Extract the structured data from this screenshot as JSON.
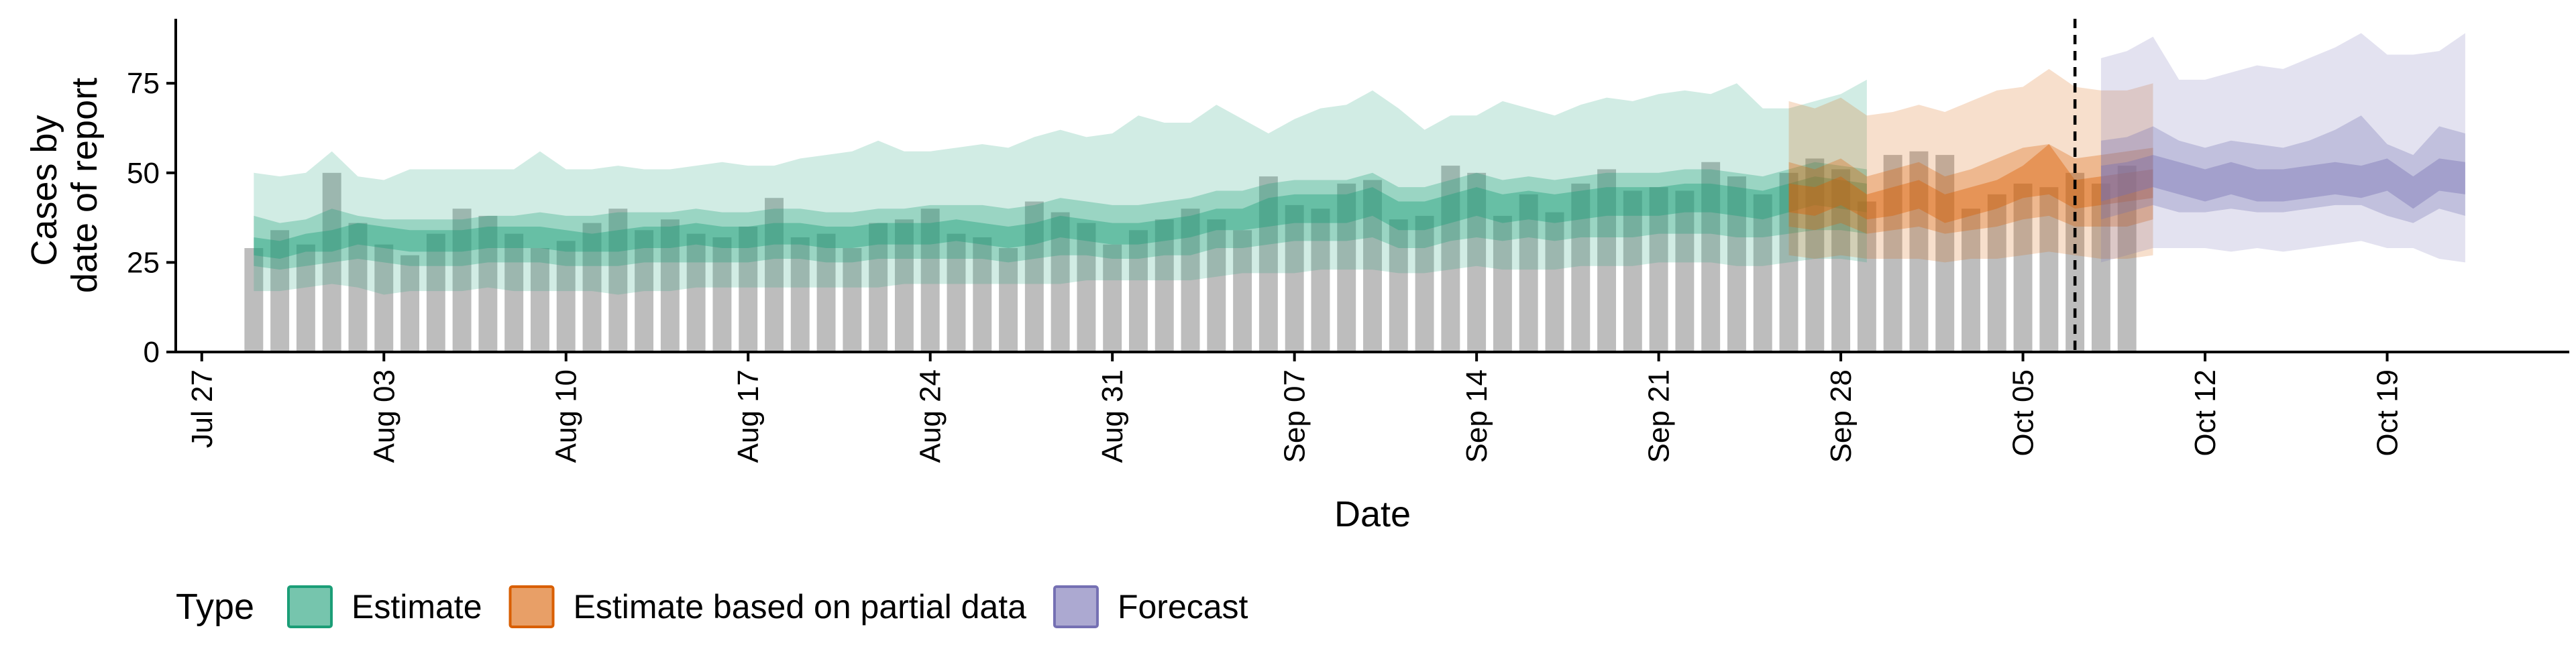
{
  "chart_data": {
    "type": "bar",
    "xlabel": "Date",
    "ylabel": [
      "Cases by",
      "date of report"
    ],
    "ylim": [
      0,
      93
    ],
    "yticks": [
      0,
      25,
      50,
      75
    ],
    "xticks": [
      {
        "date": "2020-07-27",
        "label": "Jul 27"
      },
      {
        "date": "2020-08-03",
        "label": "Aug 03"
      },
      {
        "date": "2020-08-10",
        "label": "Aug 10"
      },
      {
        "date": "2020-08-17",
        "label": "Aug 17"
      },
      {
        "date": "2020-08-24",
        "label": "Aug 24"
      },
      {
        "date": "2020-08-31",
        "label": "Aug 31"
      },
      {
        "date": "2020-09-07",
        "label": "Sep 07"
      },
      {
        "date": "2020-09-14",
        "label": "Sep 14"
      },
      {
        "date": "2020-09-21",
        "label": "Sep 21"
      },
      {
        "date": "2020-09-28",
        "label": "Sep 28"
      },
      {
        "date": "2020-10-05",
        "label": "Oct 05"
      },
      {
        "date": "2020-10-12",
        "label": "Oct 12"
      },
      {
        "date": "2020-10-19",
        "label": "Oct 19"
      }
    ],
    "xlim": [
      "2020-07-26",
      "2020-10-26"
    ],
    "reference_line_date": "2020-10-07",
    "bar_color": "#bdbdbd",
    "reported_cases": {
      "start_date": "2020-07-29",
      "values": [
        29,
        34,
        30,
        50,
        36,
        30,
        27,
        33,
        40,
        38,
        33,
        29,
        31,
        36,
        40,
        34,
        37,
        33,
        32,
        35,
        43,
        32,
        33,
        29,
        36,
        37,
        40,
        33,
        32,
        29,
        42,
        39,
        36,
        30,
        34,
        37,
        40,
        37,
        34,
        49,
        41,
        40,
        47,
        48,
        37,
        38,
        52,
        50,
        38,
        44,
        39,
        47,
        51,
        45,
        46,
        45,
        53,
        49,
        44,
        50,
        54,
        51,
        42,
        55,
        56,
        55,
        40,
        44,
        47,
        46,
        50,
        47,
        52
      ]
    },
    "series": [
      {
        "name": "Estimate",
        "color": "#1b9e77",
        "start_date": "2020-07-29",
        "median": [
          29,
          28,
          30,
          31,
          33,
          32,
          31,
          31,
          31,
          32,
          32,
          32,
          31,
          30,
          31,
          32,
          32,
          33,
          32,
          32,
          33,
          33,
          32,
          32,
          33,
          33,
          33,
          34,
          33,
          32,
          33,
          35,
          34,
          33,
          33,
          34,
          35,
          37,
          37,
          39,
          40,
          40,
          40,
          42,
          38,
          38,
          40,
          42,
          40,
          41,
          40,
          41,
          42,
          42,
          42,
          43,
          43,
          42,
          41,
          43,
          45,
          44,
          43
        ],
        "lower_90": [
          17,
          17,
          18,
          19,
          18,
          16,
          17,
          17,
          17,
          18,
          17,
          17,
          17,
          17,
          16,
          17,
          17,
          18,
          18,
          18,
          18,
          18,
          18,
          18,
          18,
          19,
          19,
          19,
          19,
          19,
          19,
          19,
          20,
          20,
          20,
          20,
          20,
          21,
          22,
          22,
          22,
          23,
          23,
          23,
          22,
          22,
          23,
          24,
          23,
          23,
          23,
          24,
          24,
          24,
          25,
          25,
          25,
          24,
          24,
          25,
          26,
          26,
          25
        ],
        "upper_90": [
          50,
          49,
          50,
          56,
          49,
          48,
          51,
          51,
          51,
          51,
          51,
          56,
          51,
          51,
          52,
          51,
          51,
          52,
          53,
          52,
          52,
          54,
          55,
          56,
          59,
          56,
          56,
          57,
          58,
          57,
          60,
          62,
          60,
          61,
          66,
          64,
          64,
          69,
          65,
          61,
          65,
          68,
          69,
          73,
          68,
          62,
          66,
          66,
          70,
          68,
          66,
          69,
          71,
          70,
          72,
          73,
          72,
          75,
          68,
          68,
          70,
          72,
          76
        ],
        "lower_50": [
          24,
          23,
          24,
          25,
          26,
          25,
          24,
          24,
          24,
          25,
          25,
          25,
          24,
          24,
          24,
          25,
          25,
          25,
          25,
          25,
          26,
          26,
          25,
          25,
          26,
          26,
          26,
          26,
          26,
          25,
          26,
          27,
          27,
          26,
          26,
          27,
          27,
          29,
          29,
          30,
          31,
          31,
          31,
          32,
          29,
          29,
          31,
          32,
          31,
          32,
          31,
          32,
          32,
          32,
          33,
          33,
          33,
          32,
          32,
          33,
          34,
          34,
          33
        ],
        "upper_50": [
          38,
          36,
          37,
          40,
          38,
          37,
          37,
          37,
          37,
          38,
          38,
          39,
          38,
          38,
          39,
          39,
          39,
          40,
          39,
          39,
          40,
          40,
          39,
          39,
          40,
          40,
          41,
          41,
          41,
          40,
          41,
          43,
          42,
          41,
          41,
          42,
          43,
          45,
          45,
          47,
          48,
          48,
          48,
          50,
          46,
          46,
          48,
          50,
          48,
          49,
          48,
          49,
          50,
          50,
          50,
          51,
          51,
          50,
          49,
          51,
          53,
          52,
          51
        ],
        "lower_20": [
          27,
          26,
          28,
          28,
          30,
          29,
          28,
          28,
          28,
          29,
          29,
          29,
          28,
          28,
          28,
          29,
          29,
          30,
          29,
          29,
          30,
          30,
          29,
          29,
          30,
          30,
          30,
          31,
          30,
          29,
          30,
          32,
          31,
          30,
          30,
          31,
          32,
          34,
          34,
          35,
          36,
          36,
          36,
          38,
          34,
          34,
          36,
          38,
          36,
          37,
          36,
          37,
          38,
          38,
          38,
          39,
          39,
          38,
          37,
          39,
          41,
          40,
          39
        ],
        "upper_20": [
          32,
          31,
          33,
          34,
          36,
          35,
          34,
          34,
          34,
          35,
          35,
          35,
          34,
          33,
          34,
          35,
          35,
          36,
          35,
          35,
          36,
          36,
          35,
          35,
          36,
          36,
          36,
          37,
          36,
          35,
          36,
          38,
          37,
          36,
          36,
          37,
          38,
          40,
          40,
          43,
          44,
          44,
          44,
          46,
          42,
          42,
          44,
          46,
          44,
          45,
          44,
          45,
          46,
          46,
          46,
          47,
          47,
          46,
          45,
          47,
          49,
          48,
          47
        ]
      },
      {
        "name": "Estimate based on partial data",
        "color": "#d95f02",
        "start_date": "2020-09-26",
        "median": [
          43,
          42,
          45,
          40,
          42,
          44,
          40,
          42,
          44,
          47,
          48,
          44,
          45,
          46,
          47
        ],
        "lower_90": [
          27,
          26,
          27,
          26,
          26,
          26,
          25,
          26,
          26,
          27,
          28,
          27,
          26,
          26,
          27
        ],
        "upper_90": [
          70,
          68,
          71,
          66,
          67,
          69,
          67,
          70,
          73,
          74,
          79,
          74,
          73,
          73,
          75
        ],
        "lower_50": [
          35,
          34,
          36,
          33,
          34,
          35,
          33,
          34,
          35,
          37,
          38,
          35,
          35,
          35,
          37
        ],
        "upper_50": [
          53,
          51,
          54,
          49,
          51,
          53,
          49,
          51,
          54,
          57,
          58,
          54,
          55,
          56,
          57
        ],
        "lower_20": [
          39,
          38,
          41,
          37,
          38,
          40,
          36,
          38,
          40,
          43,
          44,
          40,
          41,
          42,
          43
        ],
        "upper_20": [
          47,
          46,
          49,
          44,
          46,
          48,
          44,
          46,
          48,
          52,
          58,
          48,
          49,
          50,
          51
        ]
      },
      {
        "name": "Forecast",
        "color": "#7570b3",
        "start_date": "2020-10-08",
        "median": [
          47,
          48,
          50,
          48,
          46,
          48,
          46,
          46,
          47,
          48,
          47,
          49,
          44,
          49,
          48
        ],
        "lower_90": [
          25,
          27,
          29,
          29,
          29,
          28,
          29,
          28,
          29,
          30,
          31,
          29,
          29,
          26,
          25
        ],
        "upper_90": [
          82,
          84,
          88,
          76,
          76,
          78,
          80,
          79,
          82,
          85,
          89,
          83,
          83,
          84,
          89
        ],
        "lower_50": [
          37,
          39,
          41,
          39,
          39,
          40,
          39,
          39,
          40,
          41,
          41,
          38,
          36,
          40,
          38
        ],
        "upper_50": [
          59,
          60,
          63,
          59,
          57,
          59,
          58,
          57,
          59,
          62,
          66,
          58,
          55,
          63,
          61
        ],
        "lower_20": [
          42,
          44,
          46,
          44,
          42,
          44,
          42,
          42,
          43,
          44,
          43,
          45,
          40,
          45,
          44
        ],
        "upper_20": [
          52,
          53,
          55,
          53,
          51,
          53,
          51,
          51,
          52,
          53,
          52,
          54,
          49,
          54,
          53
        ]
      }
    ],
    "legend": {
      "title": "Type",
      "position": "bottom",
      "items": [
        {
          "label": "Estimate",
          "color": "#1b9e77"
        },
        {
          "label": "Estimate based on partial data",
          "color": "#d95f02"
        },
        {
          "label": "Forecast",
          "color": "#7570b3"
        }
      ]
    },
    "grid": false
  }
}
